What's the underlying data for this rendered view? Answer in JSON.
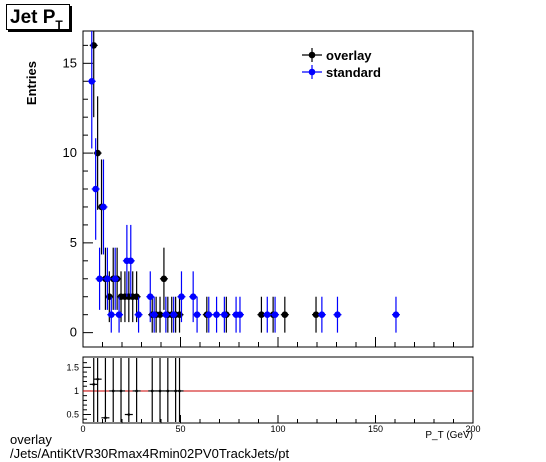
{
  "title": {
    "main": "Jet P",
    "sub": "T"
  },
  "caption": {
    "line1": "overlay",
    "line2": "/Jets/AntiKtVR30Rmax4Rmin02PV0TrackJets/pt"
  },
  "colors": {
    "overlay": "#000000",
    "standard": "#0000ff",
    "ratio_line": "#cc0000"
  },
  "chart_data": [
    {
      "type": "scatter",
      "ylabel": "Entries",
      "xlim": [
        0,
        200
      ],
      "ylim": [
        -0.8,
        16.8
      ],
      "yticks": [
        0,
        5,
        10,
        15
      ],
      "legend": "top-right",
      "series": [
        {
          "name": "overlay",
          "color": "#000000",
          "x": [
            5.5,
            7.5,
            9.5,
            11.5,
            13.5,
            15.5,
            17.5,
            19.5,
            21.5,
            23.5,
            25.5,
            27.5,
            35.5,
            37.5,
            39.5,
            41.5,
            43.5,
            45.5,
            47.5,
            49.5,
            63.5,
            73.5,
            91.5,
            97.5,
            103.5,
            119.5
          ],
          "y": [
            16,
            10,
            7,
            3,
            2,
            3,
            3,
            2,
            2,
            2,
            2,
            2,
            1,
            1,
            1,
            3,
            1,
            1,
            1,
            1,
            1,
            1,
            1,
            1,
            1,
            1
          ]
        },
        {
          "name": "standard",
          "color": "#0000ff",
          "x": [
            4.5,
            6.5,
            8.5,
            10.5,
            12.5,
            14.5,
            16.5,
            18.5,
            22.5,
            24.5,
            28.5,
            34.5,
            36.5,
            42.5,
            46.5,
            50.5,
            56.5,
            58.5,
            64.5,
            68.5,
            72.5,
            78.5,
            80.5,
            94.5,
            98.5,
            122.5,
            130.5,
            160.5
          ],
          "y": [
            14,
            8,
            3,
            7,
            3,
            1,
            3,
            1,
            4,
            4,
            1,
            2,
            1,
            1,
            1,
            2,
            2,
            1,
            1,
            1,
            1,
            1,
            1,
            1,
            1,
            1,
            1,
            1
          ]
        }
      ]
    },
    {
      "type": "scatter",
      "xlabel": "P_T (GeV)",
      "xlim": [
        0,
        200
      ],
      "xticks": [
        0,
        50,
        100,
        150,
        200
      ],
      "ylim": [
        0.32,
        1.72
      ],
      "yticks": [
        0.5,
        1,
        1.5
      ],
      "reference_line": 1,
      "series": [
        {
          "name": "ratio",
          "x": [
            5.5,
            7.5,
            11.5,
            15.5,
            19.5,
            23.5,
            27.5,
            35.5,
            39.5,
            43.5,
            47.5,
            49.5
          ],
          "y": [
            1.14,
            1.25,
            0.43,
            1.0,
            1.0,
            0.5,
            1.0,
            1.0,
            1.0,
            1.0,
            1.0,
            1.0
          ]
        }
      ]
    }
  ]
}
